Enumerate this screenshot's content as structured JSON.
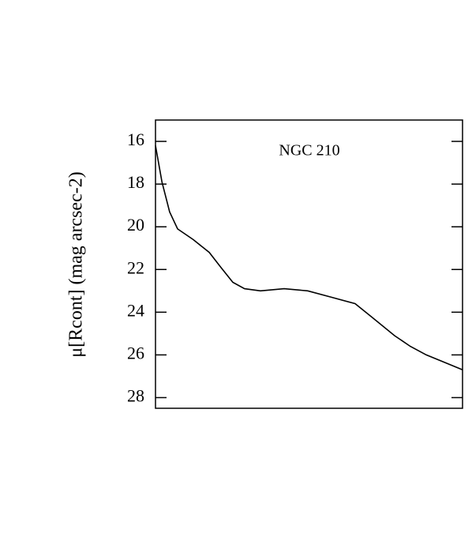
{
  "chart_data": {
    "type": "line",
    "annotation": "NGC 210",
    "ylabel": "μ[Rcont] (mag arcsec-2)",
    "x": [
      0,
      2.1,
      4.6,
      7.2,
      12.3,
      17.5,
      21.3,
      25.2,
      29.0,
      34.2,
      41.9,
      49.6,
      57.3,
      65.0,
      70.2,
      77.9,
      83.0,
      88.2,
      93.3,
      100
    ],
    "series": [
      {
        "color": "#000000",
        "values": [
          16.2,
          17.9,
          19.3,
          20.1,
          20.6,
          21.2,
          21.9,
          22.6,
          22.9,
          23.0,
          22.9,
          23.0,
          23.3,
          23.6,
          24.2,
          25.1,
          25.6,
          26.0,
          26.3,
          26.7
        ]
      }
    ],
    "xlim": [
      0,
      100
    ],
    "ylim": [
      28.5,
      15
    ],
    "yticks": [
      16,
      18,
      20,
      22,
      24,
      26,
      28
    ]
  }
}
